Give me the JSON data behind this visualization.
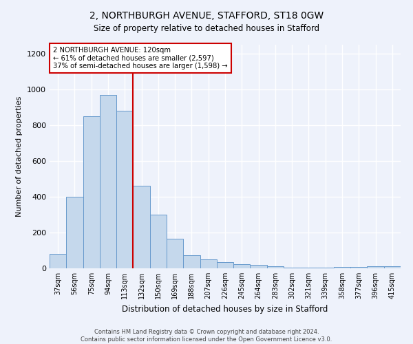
{
  "title": "2, NORTHBURGH AVENUE, STAFFORD, ST18 0GW",
  "subtitle": "Size of property relative to detached houses in Stafford",
  "xlabel": "Distribution of detached houses by size in Stafford",
  "ylabel": "Number of detached properties",
  "footer_line1": "Contains HM Land Registry data © Crown copyright and database right 2024.",
  "footer_line2": "Contains public sector information licensed under the Open Government Licence v3.0.",
  "bar_labels": [
    "37sqm",
    "56sqm",
    "75sqm",
    "94sqm",
    "113sqm",
    "132sqm",
    "150sqm",
    "169sqm",
    "188sqm",
    "207sqm",
    "226sqm",
    "245sqm",
    "264sqm",
    "283sqm",
    "302sqm",
    "321sqm",
    "339sqm",
    "358sqm",
    "377sqm",
    "396sqm",
    "415sqm"
  ],
  "bar_values": [
    80,
    400,
    850,
    970,
    880,
    460,
    300,
    165,
    75,
    50,
    35,
    25,
    18,
    10,
    4,
    3,
    3,
    9,
    6,
    11,
    11
  ],
  "bar_color": "#c5d8ec",
  "bar_edge_color": "#6699cc",
  "background_color": "#eef2fb",
  "grid_color": "#ffffff",
  "ylim": [
    0,
    1250
  ],
  "yticks": [
    0,
    200,
    400,
    600,
    800,
    1000,
    1200
  ],
  "red_line_x": 4.5,
  "annotation_line1": "2 NORTHBURGH AVENUE: 120sqm",
  "annotation_line2": "← 61% of detached houses are smaller (2,597)",
  "annotation_line3": "37% of semi-detached houses are larger (1,598) →",
  "annotation_box_color": "#ffffff",
  "annotation_box_edge": "#cc0000",
  "red_line_color": "#cc0000"
}
